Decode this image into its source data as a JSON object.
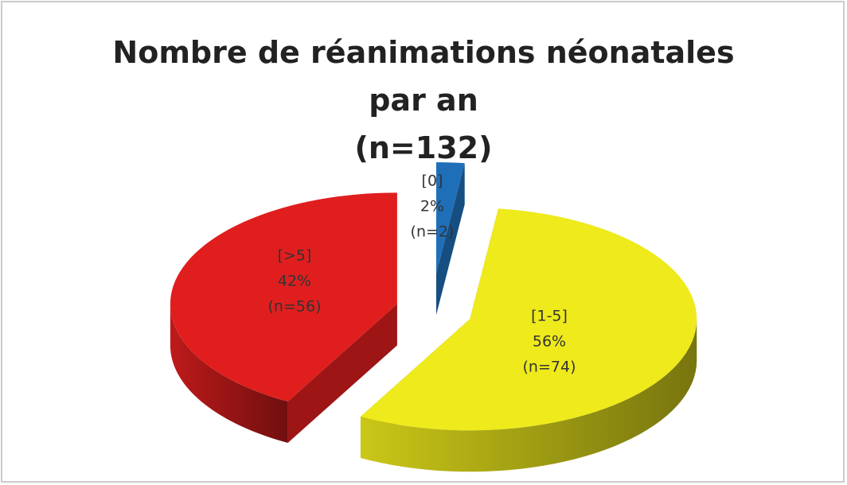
{
  "chart_data": {
    "type": "pie",
    "title": "Nombre de réanimations néonatales par an",
    "subtitle": "(n=132)",
    "categories": [
      "[0]",
      "[1-5]",
      "[>5]"
    ],
    "values": [
      2,
      56,
      42
    ],
    "value_labels": [
      "2%",
      "56%",
      "42%"
    ],
    "counts": [
      2,
      74,
      56
    ],
    "count_labels": [
      "(n=2)",
      "(n=74)",
      "(n=56)"
    ],
    "colors": [
      "#1f6fb8",
      "#eeea1c",
      "#e01e1e"
    ],
    "exploded": true,
    "three_d": true
  }
}
